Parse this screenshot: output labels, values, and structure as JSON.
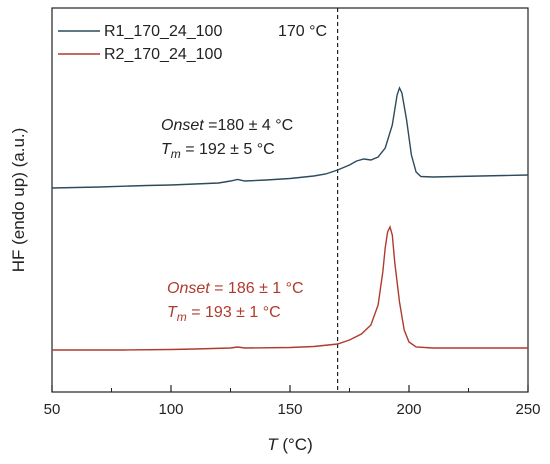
{
  "chart_data": {
    "type": "line",
    "xlabel_var": "T",
    "xlabel_unit": " (°C)",
    "ylabel": "HF (endo up) (a.u.)",
    "xlim": [
      50,
      250
    ],
    "x_ticks": [
      50,
      100,
      150,
      200,
      250
    ],
    "y_ticks_shown": false,
    "vline": {
      "x": 170,
      "label": "170 °C"
    },
    "legend": {
      "placement": "top-left"
    },
    "colors": {
      "series1": "#2e4a5c",
      "series2": "#b03a2e"
    },
    "series": [
      {
        "name": "R1_170_24_100",
        "color": "#2e4a5c",
        "points": [
          [
            50,
            188
          ],
          [
            70,
            187
          ],
          [
            90,
            185.5
          ],
          [
            100,
            185
          ],
          [
            110,
            184
          ],
          [
            120,
            183
          ],
          [
            125,
            181
          ],
          [
            128,
            179.5
          ],
          [
            131,
            181
          ],
          [
            140,
            180
          ],
          [
            150,
            178.5
          ],
          [
            160,
            176
          ],
          [
            165,
            174
          ],
          [
            170,
            170
          ],
          [
            175,
            165
          ],
          [
            178,
            161
          ],
          [
            181,
            159
          ],
          [
            184,
            160
          ],
          [
            187,
            157
          ],
          [
            190,
            148
          ],
          [
            193,
            125
          ],
          [
            195,
            95
          ],
          [
            196,
            88
          ],
          [
            197,
            93
          ],
          [
            199,
            120
          ],
          [
            201,
            155
          ],
          [
            203,
            172
          ],
          [
            205,
            176.5
          ],
          [
            210,
            177
          ],
          [
            220,
            176.5
          ],
          [
            230,
            176
          ],
          [
            240,
            175.5
          ],
          [
            250,
            175
          ]
        ]
      },
      {
        "name": "R2_170_24_100",
        "color": "#b03a2e",
        "points": [
          [
            50,
            350
          ],
          [
            80,
            350
          ],
          [
            100,
            349.5
          ],
          [
            110,
            349
          ],
          [
            125,
            348
          ],
          [
            128,
            347
          ],
          [
            131,
            348
          ],
          [
            150,
            347.5
          ],
          [
            160,
            346.5
          ],
          [
            170,
            344
          ],
          [
            175,
            340
          ],
          [
            180,
            334
          ],
          [
            184,
            325
          ],
          [
            187,
            305
          ],
          [
            189,
            272
          ],
          [
            190,
            248
          ],
          [
            191,
            232
          ],
          [
            192,
            227
          ],
          [
            193,
            235
          ],
          [
            194,
            262
          ],
          [
            196,
            302
          ],
          [
            198,
            330
          ],
          [
            200,
            342
          ],
          [
            203,
            347
          ],
          [
            210,
            348
          ],
          [
            230,
            348
          ],
          [
            250,
            348
          ]
        ]
      }
    ],
    "annotations": [
      {
        "onset_label": "Onset",
        "onset_sep": " =",
        "onset_value": "180 ± 4 °C",
        "tm_var": "T",
        "tm_sub": "m",
        "tm_value": " = 192 ± 5 °C",
        "color": "#222222"
      },
      {
        "onset_label": "Onset",
        "onset_sep": " = ",
        "onset_value": "186 ± 1 °C",
        "tm_var": "T",
        "tm_sub": "m",
        "tm_value": " = 193 ± 1 °C",
        "color": "#b03a2e"
      }
    ]
  }
}
